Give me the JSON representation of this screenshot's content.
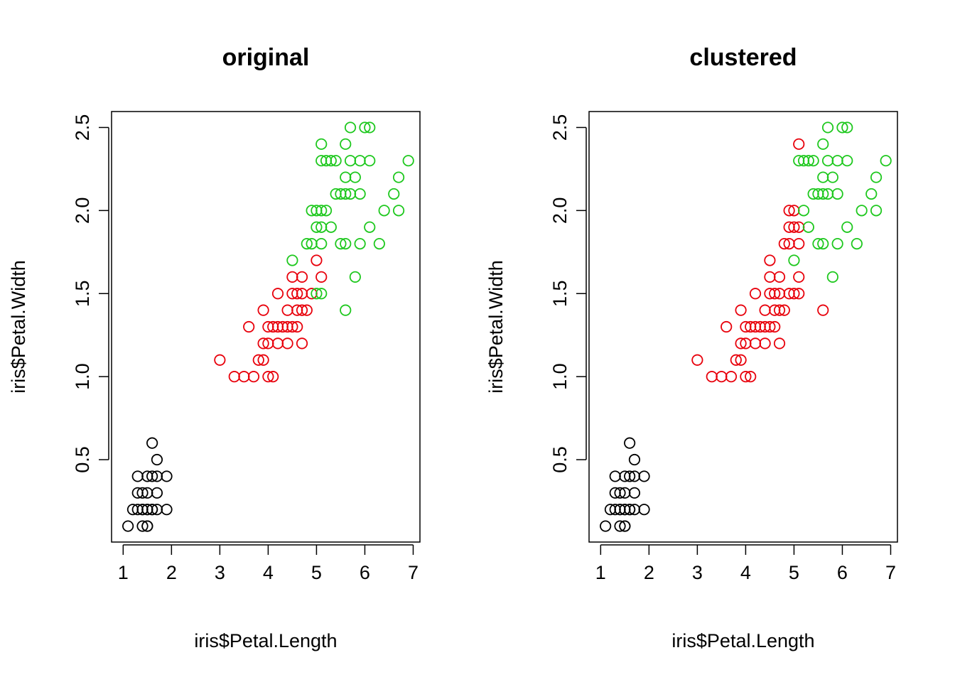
{
  "chart_data": [
    {
      "type": "scatter",
      "title": "original",
      "xlabel": "iris$Petal.Length",
      "ylabel": "iris$Petal.Width",
      "xlim": [
        0.76,
        7.14
      ],
      "ylim": [
        0.004,
        2.596
      ],
      "xticks": [
        "1",
        "2",
        "3",
        "4",
        "5",
        "6",
        "7"
      ],
      "yticks": [
        "0.5",
        "1.0",
        "1.5",
        "2.0",
        "2.5"
      ],
      "grid": false,
      "series": [
        {
          "color": "#000000",
          "points": [
            [
              1.1,
              0.1
            ],
            [
              1.4,
              0.1
            ],
            [
              1.5,
              0.1
            ],
            [
              1.5,
              0.1
            ],
            [
              1.2,
              0.2
            ],
            [
              1.3,
              0.2
            ],
            [
              1.4,
              0.2
            ],
            [
              1.4,
              0.2
            ],
            [
              1.5,
              0.2
            ],
            [
              1.5,
              0.2
            ],
            [
              1.6,
              0.2
            ],
            [
              1.6,
              0.2
            ],
            [
              1.7,
              0.2
            ],
            [
              1.9,
              0.2
            ],
            [
              1.3,
              0.3
            ],
            [
              1.4,
              0.3
            ],
            [
              1.5,
              0.3
            ],
            [
              1.7,
              0.3
            ],
            [
              1.3,
              0.4
            ],
            [
              1.5,
              0.4
            ],
            [
              1.6,
              0.4
            ],
            [
              1.7,
              0.4
            ],
            [
              1.9,
              0.4
            ],
            [
              1.7,
              0.5
            ],
            [
              1.6,
              0.6
            ]
          ]
        },
        {
          "color": "#e8000b",
          "points": [
            [
              3.3,
              1.0
            ],
            [
              3.5,
              1.0
            ],
            [
              3.7,
              1.0
            ],
            [
              4.0,
              1.0
            ],
            [
              4.1,
              1.0
            ],
            [
              3.0,
              1.1
            ],
            [
              3.8,
              1.1
            ],
            [
              3.9,
              1.1
            ],
            [
              3.9,
              1.2
            ],
            [
              4.0,
              1.2
            ],
            [
              4.2,
              1.2
            ],
            [
              4.4,
              1.2
            ],
            [
              4.7,
              1.2
            ],
            [
              3.6,
              1.3
            ],
            [
              4.0,
              1.3
            ],
            [
              4.1,
              1.3
            ],
            [
              4.2,
              1.3
            ],
            [
              4.3,
              1.3
            ],
            [
              4.4,
              1.3
            ],
            [
              4.5,
              1.3
            ],
            [
              4.6,
              1.3
            ],
            [
              3.9,
              1.4
            ],
            [
              4.4,
              1.4
            ],
            [
              4.6,
              1.4
            ],
            [
              4.7,
              1.4
            ],
            [
              4.8,
              1.4
            ],
            [
              4.2,
              1.5
            ],
            [
              4.5,
              1.5
            ],
            [
              4.6,
              1.5
            ],
            [
              4.7,
              1.5
            ],
            [
              4.9,
              1.5
            ],
            [
              4.5,
              1.6
            ],
            [
              4.7,
              1.6
            ],
            [
              5.1,
              1.6
            ],
            [
              5.0,
              1.7
            ]
          ]
        },
        {
          "color": "#1ec81e",
          "points": [
            [
              5.6,
              1.4
            ],
            [
              5.0,
              1.5
            ],
            [
              5.1,
              1.5
            ],
            [
              5.8,
              1.6
            ],
            [
              4.5,
              1.7
            ],
            [
              4.8,
              1.8
            ],
            [
              4.9,
              1.8
            ],
            [
              5.1,
              1.8
            ],
            [
              5.5,
              1.8
            ],
            [
              5.6,
              1.8
            ],
            [
              5.9,
              1.8
            ],
            [
              6.3,
              1.8
            ],
            [
              5.0,
              1.9
            ],
            [
              5.1,
              1.9
            ],
            [
              5.3,
              1.9
            ],
            [
              6.1,
              1.9
            ],
            [
              4.9,
              2.0
            ],
            [
              5.0,
              2.0
            ],
            [
              5.1,
              2.0
            ],
            [
              5.2,
              2.0
            ],
            [
              6.4,
              2.0
            ],
            [
              6.7,
              2.0
            ],
            [
              5.4,
              2.1
            ],
            [
              5.5,
              2.1
            ],
            [
              5.6,
              2.1
            ],
            [
              5.7,
              2.1
            ],
            [
              5.9,
              2.1
            ],
            [
              6.6,
              2.1
            ],
            [
              5.6,
              2.2
            ],
            [
              5.8,
              2.2
            ],
            [
              6.7,
              2.2
            ],
            [
              5.1,
              2.3
            ],
            [
              5.2,
              2.3
            ],
            [
              5.3,
              2.3
            ],
            [
              5.4,
              2.3
            ],
            [
              5.7,
              2.3
            ],
            [
              5.9,
              2.3
            ],
            [
              6.1,
              2.3
            ],
            [
              6.9,
              2.3
            ],
            [
              5.1,
              2.4
            ],
            [
              5.6,
              2.4
            ],
            [
              5.7,
              2.5
            ],
            [
              6.0,
              2.5
            ],
            [
              6.1,
              2.5
            ]
          ]
        }
      ]
    },
    {
      "type": "scatter",
      "title": "clustered",
      "xlabel": "iris$Petal.Length",
      "ylabel": "iris$Petal.Width",
      "xlim": [
        0.76,
        7.14
      ],
      "ylim": [
        0.004,
        2.596
      ],
      "xticks": [
        "1",
        "2",
        "3",
        "4",
        "5",
        "6",
        "7"
      ],
      "yticks": [
        "0.5",
        "1.0",
        "1.5",
        "2.0",
        "2.5"
      ],
      "grid": false,
      "series": [
        {
          "color": "#000000",
          "points": [
            [
              1.1,
              0.1
            ],
            [
              1.4,
              0.1
            ],
            [
              1.5,
              0.1
            ],
            [
              1.5,
              0.1
            ],
            [
              1.2,
              0.2
            ],
            [
              1.3,
              0.2
            ],
            [
              1.4,
              0.2
            ],
            [
              1.4,
              0.2
            ],
            [
              1.5,
              0.2
            ],
            [
              1.5,
              0.2
            ],
            [
              1.6,
              0.2
            ],
            [
              1.6,
              0.2
            ],
            [
              1.7,
              0.2
            ],
            [
              1.9,
              0.2
            ],
            [
              1.3,
              0.3
            ],
            [
              1.4,
              0.3
            ],
            [
              1.5,
              0.3
            ],
            [
              1.7,
              0.3
            ],
            [
              1.3,
              0.4
            ],
            [
              1.5,
              0.4
            ],
            [
              1.6,
              0.4
            ],
            [
              1.7,
              0.4
            ],
            [
              1.9,
              0.4
            ],
            [
              1.7,
              0.5
            ],
            [
              1.6,
              0.6
            ]
          ]
        },
        {
          "color": "#e8000b",
          "points": [
            [
              3.3,
              1.0
            ],
            [
              3.5,
              1.0
            ],
            [
              3.7,
              1.0
            ],
            [
              4.0,
              1.0
            ],
            [
              4.1,
              1.0
            ],
            [
              3.0,
              1.1
            ],
            [
              3.8,
              1.1
            ],
            [
              3.9,
              1.1
            ],
            [
              3.9,
              1.2
            ],
            [
              4.0,
              1.2
            ],
            [
              4.2,
              1.2
            ],
            [
              4.4,
              1.2
            ],
            [
              4.7,
              1.2
            ],
            [
              3.6,
              1.3
            ],
            [
              4.0,
              1.3
            ],
            [
              4.1,
              1.3
            ],
            [
              4.2,
              1.3
            ],
            [
              4.3,
              1.3
            ],
            [
              4.4,
              1.3
            ],
            [
              4.5,
              1.3
            ],
            [
              4.6,
              1.3
            ],
            [
              3.9,
              1.4
            ],
            [
              4.4,
              1.4
            ],
            [
              4.6,
              1.4
            ],
            [
              4.7,
              1.4
            ],
            [
              4.8,
              1.4
            ],
            [
              5.6,
              1.4
            ],
            [
              4.2,
              1.5
            ],
            [
              4.5,
              1.5
            ],
            [
              4.6,
              1.5
            ],
            [
              4.7,
              1.5
            ],
            [
              4.9,
              1.5
            ],
            [
              5.0,
              1.5
            ],
            [
              5.1,
              1.5
            ],
            [
              4.5,
              1.6
            ],
            [
              4.7,
              1.6
            ],
            [
              5.1,
              1.6
            ],
            [
              4.5,
              1.7
            ],
            [
              4.8,
              1.8
            ],
            [
              4.9,
              1.8
            ],
            [
              5.1,
              1.8
            ],
            [
              4.9,
              1.9
            ],
            [
              5.0,
              1.9
            ],
            [
              5.1,
              1.9
            ],
            [
              4.9,
              2.0
            ],
            [
              5.0,
              2.0
            ],
            [
              5.1,
              2.4
            ]
          ]
        },
        {
          "color": "#1ec81e",
          "points": [
            [
              5.8,
              1.6
            ],
            [
              5.0,
              1.7
            ],
            [
              5.5,
              1.8
            ],
            [
              5.6,
              1.8
            ],
            [
              5.9,
              1.8
            ],
            [
              6.3,
              1.8
            ],
            [
              5.3,
              1.9
            ],
            [
              6.1,
              1.9
            ],
            [
              5.2,
              2.0
            ],
            [
              6.4,
              2.0
            ],
            [
              6.7,
              2.0
            ],
            [
              5.4,
              2.1
            ],
            [
              5.5,
              2.1
            ],
            [
              5.6,
              2.1
            ],
            [
              5.7,
              2.1
            ],
            [
              5.9,
              2.1
            ],
            [
              6.6,
              2.1
            ],
            [
              5.6,
              2.2
            ],
            [
              5.8,
              2.2
            ],
            [
              6.7,
              2.2
            ],
            [
              5.1,
              2.3
            ],
            [
              5.2,
              2.3
            ],
            [
              5.3,
              2.3
            ],
            [
              5.4,
              2.3
            ],
            [
              5.7,
              2.3
            ],
            [
              5.9,
              2.3
            ],
            [
              6.1,
              2.3
            ],
            [
              6.9,
              2.3
            ],
            [
              5.6,
              2.4
            ],
            [
              5.7,
              2.5
            ],
            [
              6.0,
              2.5
            ],
            [
              6.1,
              2.5
            ]
          ]
        }
      ]
    }
  ]
}
